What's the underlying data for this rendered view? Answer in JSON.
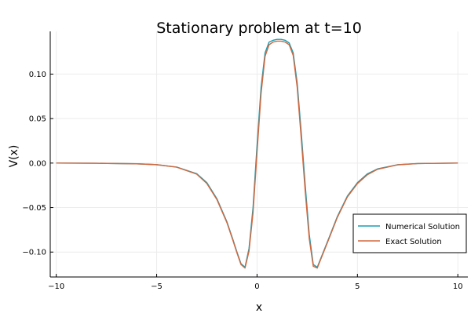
{
  "chart_data": {
    "type": "line",
    "title": "Stationary problem at t=10",
    "xlabel": "x",
    "ylabel": "V(x)",
    "xlim": [
      -10.3,
      10.5
    ],
    "ylim": [
      -0.128,
      0.148
    ],
    "xticks": [
      -10,
      -5,
      0,
      5,
      10
    ],
    "yticks": [
      -0.1,
      -0.05,
      0.0,
      0.05,
      0.1
    ],
    "xtick_labels": [
      "−10",
      "−5",
      "0",
      "5",
      "10"
    ],
    "ytick_labels": [
      "−0.10",
      "−0.05",
      "0.00",
      "0.05",
      "0.10"
    ],
    "grid": true,
    "legend_position": "bottom-right",
    "series": [
      {
        "name": "Numerical Solution",
        "color": "#1a9eb3",
        "x": [
          -10,
          -8,
          -6,
          -5,
          -4,
          -3,
          -2.5,
          -2,
          -1.5,
          -1.2,
          -1,
          -0.8,
          -0.6,
          -0.4,
          -0.2,
          0,
          0.2,
          0.4,
          0.6,
          0.8,
          1.0,
          1.2,
          1.4,
          1.6,
          1.8,
          2.0,
          2.2,
          2.4,
          2.6,
          2.8,
          3.0,
          3.3,
          3.6,
          4,
          4.5,
          5,
          5.5,
          6,
          7,
          8,
          10
        ],
        "y": [
          0.0,
          -0.0002,
          -0.0008,
          -0.0018,
          -0.0045,
          -0.012,
          -0.022,
          -0.04,
          -0.066,
          -0.086,
          -0.1,
          -0.113,
          -0.117,
          -0.096,
          -0.05,
          0.02,
          0.085,
          0.124,
          0.136,
          0.138,
          0.139,
          0.139,
          0.138,
          0.135,
          0.124,
          0.09,
          0.035,
          -0.025,
          -0.08,
          -0.114,
          -0.117,
          -0.1,
          -0.083,
          -0.06,
          -0.037,
          -0.022,
          -0.012,
          -0.0065,
          -0.0018,
          -0.0005,
          0.0
        ]
      },
      {
        "name": "Exact Solution",
        "color": "#d2683f",
        "x": [
          -10,
          -8,
          -6,
          -5,
          -4,
          -3,
          -2.5,
          -2,
          -1.5,
          -1.2,
          -1,
          -0.8,
          -0.6,
          -0.4,
          -0.2,
          0,
          0.2,
          0.4,
          0.6,
          0.8,
          1.0,
          1.2,
          1.4,
          1.6,
          1.8,
          2.0,
          2.2,
          2.4,
          2.6,
          2.8,
          3.0,
          3.3,
          3.6,
          4,
          4.5,
          5,
          5.5,
          6,
          7,
          8,
          10
        ],
        "y": [
          0.0,
          -0.0002,
          -0.0008,
          -0.0018,
          -0.0046,
          -0.0125,
          -0.023,
          -0.041,
          -0.067,
          -0.087,
          -0.101,
          -0.114,
          -0.118,
          -0.099,
          -0.056,
          0.012,
          0.078,
          0.12,
          0.133,
          0.136,
          0.137,
          0.137,
          0.136,
          0.133,
          0.121,
          0.085,
          0.028,
          -0.032,
          -0.085,
          -0.116,
          -0.118,
          -0.101,
          -0.084,
          -0.061,
          -0.038,
          -0.023,
          -0.013,
          -0.007,
          -0.002,
          -0.0005,
          0.0
        ]
      }
    ]
  }
}
